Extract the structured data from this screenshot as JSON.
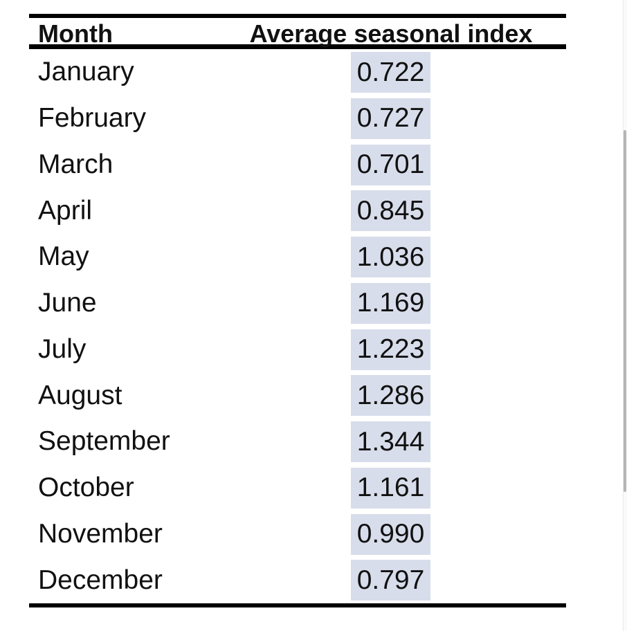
{
  "table": {
    "col_month": "Month",
    "col_value": "Average seasonal index",
    "rows": [
      {
        "month": "January",
        "value": "0.722"
      },
      {
        "month": "February",
        "value": "0.727"
      },
      {
        "month": "March",
        "value": "0.701"
      },
      {
        "month": "April",
        "value": "0.845"
      },
      {
        "month": "May",
        "value": "1.036"
      },
      {
        "month": "June",
        "value": "1.169"
      },
      {
        "month": "July",
        "value": "1.223"
      },
      {
        "month": "August",
        "value": "1.286"
      },
      {
        "month": "September",
        "value": "1.344"
      },
      {
        "month": "October",
        "value": "1.161"
      },
      {
        "month": "November",
        "value": "0.990"
      },
      {
        "month": "December",
        "value": "0.797"
      }
    ]
  },
  "colors": {
    "highlight": "#d8ddeb",
    "rule": "#000000",
    "text": "#111111",
    "scrollbar_thumb": "#b5b5b5",
    "scrollbar_track": "#fafafa",
    "scrollbar_border": "#e9e9e9"
  },
  "chart_data": {
    "type": "table",
    "title": "",
    "columns": [
      "Month",
      "Average seasonal index"
    ],
    "categories": [
      "January",
      "February",
      "March",
      "April",
      "May",
      "June",
      "July",
      "August",
      "September",
      "October",
      "November",
      "December"
    ],
    "values": [
      0.722,
      0.727,
      0.701,
      0.845,
      1.036,
      1.169,
      1.223,
      1.286,
      1.344,
      1.161,
      0.99,
      0.797
    ]
  }
}
